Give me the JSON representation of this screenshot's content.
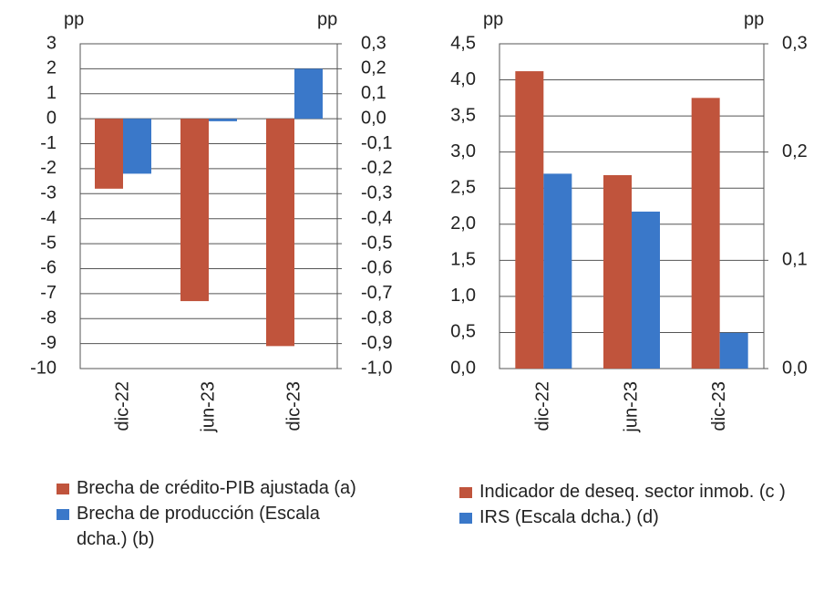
{
  "chart_data": [
    {
      "type": "bar",
      "ylabel": "pp",
      "y2label": "pp",
      "categories": [
        "dic-22",
        "jun-23",
        "dic-23"
      ],
      "series": [
        {
          "name": "Brecha de crédito-PIB ajustada (a)",
          "color": "#c0543c",
          "values": [
            -2.8,
            -7.3,
            -9.1
          ]
        },
        {
          "name": "Brecha de producción (Escala dcha.) (b)",
          "color": "#3a78c9",
          "axis": "y2",
          "values": [
            -0.22,
            -0.01,
            0.2
          ]
        }
      ],
      "ylim": [
        -10,
        3
      ],
      "yticks": [
        -10,
        -9,
        -8,
        -7,
        -6,
        -5,
        -4,
        -3,
        -2,
        -1,
        0,
        1,
        2,
        3
      ],
      "y2lim": [
        -1.0,
        0.3
      ],
      "y2ticks": [
        {
          "value": -1.0,
          "label": "-1,0"
        },
        {
          "value": -0.9,
          "label": "-0,9"
        },
        {
          "value": -0.8,
          "label": "-0,8"
        },
        {
          "value": -0.7,
          "label": "-0,7"
        },
        {
          "value": -0.6,
          "label": "-0,6"
        },
        {
          "value": -0.5,
          "label": "-0,5"
        },
        {
          "value": -0.4,
          "label": "-0,4"
        },
        {
          "value": -0.3,
          "label": "-0,3"
        },
        {
          "value": -0.2,
          "label": "-0,2"
        },
        {
          "value": -0.1,
          "label": "-0,1"
        },
        {
          "value": 0.0,
          "label": "0,0"
        },
        {
          "value": 0.1,
          "label": "0,1"
        },
        {
          "value": 0.2,
          "label": "0,2"
        },
        {
          "value": 0.3,
          "label": "0,3"
        }
      ],
      "grid": true
    },
    {
      "type": "bar",
      "ylabel": "pp",
      "y2label": "pp",
      "categories": [
        "dic-22",
        "jun-23",
        "dic-23"
      ],
      "series": [
        {
          "name": "Indicador de deseq. sector inmob. (c )",
          "color": "#c0543c",
          "values": [
            4.12,
            2.68,
            3.75
          ]
        },
        {
          "name": "IRS (Escala dcha.) (d)",
          "color": "#3a78c9",
          "axis": "y2",
          "values": [
            0.18,
            0.145,
            0.033
          ]
        }
      ],
      "ylim": [
        0,
        4.5
      ],
      "yticks": [
        {
          "value": 0,
          "label": "0,0"
        },
        {
          "value": 0.5,
          "label": "0,5"
        },
        {
          "value": 1,
          "label": "1,0"
        },
        {
          "value": 1.5,
          "label": "1,5"
        },
        {
          "value": 2,
          "label": "2,0"
        },
        {
          "value": 2.5,
          "label": "2,5"
        },
        {
          "value": 3,
          "label": "3,0"
        },
        {
          "value": 3.5,
          "label": "3,5"
        },
        {
          "value": 4,
          "label": "4,0"
        },
        {
          "value": 4.5,
          "label": "4,5"
        }
      ],
      "y2lim": [
        0,
        0.3
      ],
      "y2ticks": [
        {
          "value": 0,
          "label": "0,0"
        },
        {
          "value": 0.1,
          "label": "0,1"
        },
        {
          "value": 0.2,
          "label": "0,2"
        },
        {
          "value": 0.3,
          "label": "0,3"
        }
      ],
      "grid": true
    }
  ]
}
